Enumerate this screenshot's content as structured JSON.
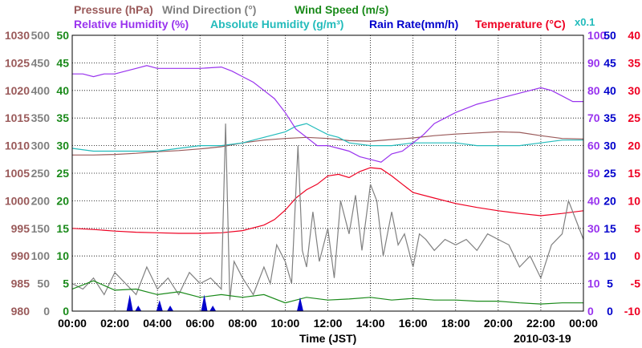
{
  "chart_data": {
    "type": "line",
    "legend": {
      "row1": [
        {
          "label": "Pressure (hPa)",
          "color": "#9a5a5a"
        },
        {
          "label": "Wind Direction (°)",
          "color": "#808080"
        },
        {
          "label": "Wind Speed (m/s)",
          "color": "#1a8a1a"
        }
      ],
      "row2": [
        {
          "label": "Relative Humidity (%)",
          "color": "#9933ee"
        },
        {
          "label": "Absolute Humidity (g/m³)",
          "color": "#22bbbb"
        },
        {
          "label": "Rain Rate(mm/h)",
          "color": "#0000cc"
        },
        {
          "label": "Temperature (°C)",
          "color": "#ee0022"
        }
      ],
      "multiplier": "x0.1"
    },
    "xlabel": "Time (JST)",
    "date": "2010-03-19",
    "x_ticks": [
      "00:00",
      "02:00",
      "04:00",
      "06:00",
      "08:00",
      "10:00",
      "12:00",
      "14:00",
      "16:00",
      "18:00",
      "20:00",
      "22:00",
      "00:00"
    ],
    "axes": {
      "pressure": {
        "color": "#9a5a5a",
        "min": 980,
        "max": 1030,
        "ticks": [
          980,
          985,
          990,
          995,
          1000,
          1005,
          1010,
          1015,
          1020,
          1025,
          1030
        ]
      },
      "wind_dir": {
        "color": "#808080",
        "min": 0,
        "max": 500,
        "ticks": [
          0,
          50,
          100,
          150,
          200,
          250,
          300,
          350,
          400,
          450,
          500
        ]
      },
      "wind_speed": {
        "color": "#1a8a1a",
        "min": 0,
        "max": 50,
        "ticks": [
          0,
          5,
          10,
          15,
          20,
          25,
          30,
          35,
          40,
          45,
          50
        ]
      },
      "rh": {
        "color": "#9933ee",
        "min": 0,
        "max": 100,
        "ticks": [
          0,
          10,
          20,
          30,
          40,
          50,
          60,
          70,
          80,
          90,
          100
        ]
      },
      "rain": {
        "color": "#0000cc",
        "min": 0,
        "max": 50,
        "ticks": [
          0,
          5,
          10,
          15,
          20,
          25,
          30,
          35,
          40,
          45,
          50
        ]
      },
      "temp": {
        "color": "#ee0022",
        "min": -10,
        "max": 40,
        "ticks": [
          -10,
          -5,
          0,
          5,
          10,
          15,
          20,
          25,
          30,
          35,
          40
        ]
      }
    },
    "series": [
      {
        "name": "Pressure (hPa)",
        "axis": "pressure",
        "color": "#9a5a5a",
        "x": [
          0,
          1,
          2,
          3,
          4,
          5,
          6,
          7,
          8,
          9,
          10,
          11,
          12,
          13,
          14,
          15,
          16,
          17,
          18,
          19,
          20,
          21,
          22,
          23,
          24
        ],
        "y": [
          1008.3,
          1008.3,
          1008.4,
          1008.6,
          1008.9,
          1009.1,
          1009.4,
          1009.8,
          1010.5,
          1011,
          1011.3,
          1011.5,
          1011.3,
          1010.9,
          1010.8,
          1011.1,
          1011.4,
          1011.8,
          1012.1,
          1012.3,
          1012.5,
          1012.4,
          1011.8,
          1011.3,
          1011.2
        ]
      },
      {
        "name": "Absolute Humidity (g/m³)",
        "axis": "wind_speed",
        "color": "#22bbbb",
        "x": [
          0,
          1,
          2,
          3,
          4,
          5,
          6,
          7,
          8,
          9,
          10,
          10.5,
          11,
          11.5,
          12,
          12.5,
          13,
          14,
          15,
          16,
          17,
          18,
          19,
          20,
          21,
          22,
          23,
          24
        ],
        "y": [
          29.5,
          29,
          29,
          29,
          29,
          29.5,
          30,
          30,
          30.5,
          31.5,
          32.5,
          33.5,
          34,
          33,
          32,
          31.5,
          30.5,
          30,
          30,
          30.5,
          30.5,
          30.5,
          30,
          30,
          30,
          30.5,
          31,
          31
        ]
      },
      {
        "name": "Relative Humidity (%)",
        "axis": "rh",
        "color": "#9933ee",
        "x": [
          0,
          0.5,
          1,
          1.5,
          2,
          2.5,
          3,
          3.5,
          4,
          5,
          6,
          7,
          7.5,
          8,
          8.5,
          9,
          9.5,
          10,
          10.5,
          11,
          11.5,
          12,
          12.5,
          13,
          13.5,
          14,
          14.5,
          15,
          15.5,
          16,
          16.5,
          17,
          18,
          19,
          20,
          21,
          21.5,
          22,
          22.5,
          23,
          23.5,
          24
        ],
        "y": [
          86,
          86,
          85,
          86,
          86,
          87,
          88,
          89,
          88,
          88,
          88,
          88.5,
          87,
          85,
          83,
          80,
          77,
          72,
          66,
          63,
          60,
          60,
          59,
          58,
          56,
          55,
          54,
          57,
          58,
          61,
          64,
          68,
          72,
          75,
          77,
          79,
          80,
          81,
          80,
          78,
          76,
          76
        ]
      },
      {
        "name": "Temperature (°C)",
        "axis": "temp",
        "color": "#ee0022",
        "x": [
          0,
          1,
          2,
          3,
          4,
          5,
          6,
          7,
          8,
          9,
          9.5,
          10,
          10.5,
          11,
          11.5,
          12,
          12.5,
          13,
          13.5,
          14,
          14.5,
          15,
          15.5,
          16,
          17,
          18,
          19,
          20,
          21,
          22,
          23,
          24
        ],
        "y": [
          5,
          4.8,
          4.5,
          4.3,
          4.2,
          4.1,
          4.1,
          4.2,
          4.6,
          5.6,
          6.6,
          8.3,
          10.5,
          12,
          13,
          14.5,
          14.8,
          14.2,
          15.3,
          16,
          15.8,
          14.5,
          13,
          11.5,
          10.5,
          9.5,
          8.8,
          8.2,
          7.7,
          7.3,
          7.7,
          8.2
        ]
      },
      {
        "name": "Wind Direction (°)",
        "axis": "wind_dir",
        "color": "#808080",
        "x": [
          0,
          0.5,
          1,
          1.5,
          2,
          2.5,
          3,
          3.5,
          4,
          4.5,
          5,
          5.5,
          6,
          6.5,
          7,
          7.2,
          7.4,
          7.6,
          8,
          8.5,
          9,
          9.3,
          9.6,
          10,
          10.3,
          10.6,
          10.8,
          11,
          11.3,
          11.6,
          12,
          12.3,
          12.6,
          13,
          13.3,
          13.6,
          14,
          14.3,
          14.6,
          15,
          15.3,
          15.6,
          16,
          16.3,
          16.6,
          17,
          17.5,
          18,
          18.5,
          19,
          19.5,
          20,
          20.5,
          21,
          21.5,
          22,
          22.5,
          23,
          23.3,
          23.6,
          24
        ],
        "y": [
          50,
          40,
          60,
          30,
          70,
          50,
          30,
          80,
          40,
          60,
          30,
          70,
          50,
          60,
          40,
          340,
          20,
          90,
          60,
          30,
          80,
          50,
          120,
          90,
          50,
          300,
          110,
          80,
          180,
          90,
          150,
          60,
          200,
          140,
          210,
          110,
          230,
          200,
          100,
          180,
          120,
          140,
          80,
          140,
          130,
          110,
          130,
          120,
          130,
          110,
          140,
          130,
          120,
          80,
          100,
          60,
          120,
          140,
          200,
          170,
          130
        ]
      },
      {
        "name": "Wind Speed (m/s)",
        "axis": "wind_speed",
        "color": "#1a8a1a",
        "x": [
          0,
          1,
          2,
          3,
          4,
          5,
          6,
          7,
          8,
          9,
          10,
          11,
          12,
          13,
          14,
          15,
          16,
          17,
          18,
          19,
          20,
          21,
          22,
          23,
          24
        ],
        "y": [
          4,
          5.5,
          3.8,
          4,
          3,
          3.5,
          2.5,
          3,
          2.5,
          3,
          1.5,
          2.5,
          2,
          2.2,
          2.5,
          2,
          2.3,
          2,
          2,
          1.8,
          1.8,
          1.5,
          1.3,
          1.5,
          1.5
        ]
      },
      {
        "name": "Rain Rate(mm/h)",
        "axis": "rain",
        "color": "#0000cc",
        "x": [
          2.7,
          3.1,
          4.1,
          4.6,
          6.2,
          6.6,
          10.7
        ],
        "y": [
          3,
          1,
          2,
          1,
          3,
          1,
          2.5
        ]
      }
    ]
  }
}
